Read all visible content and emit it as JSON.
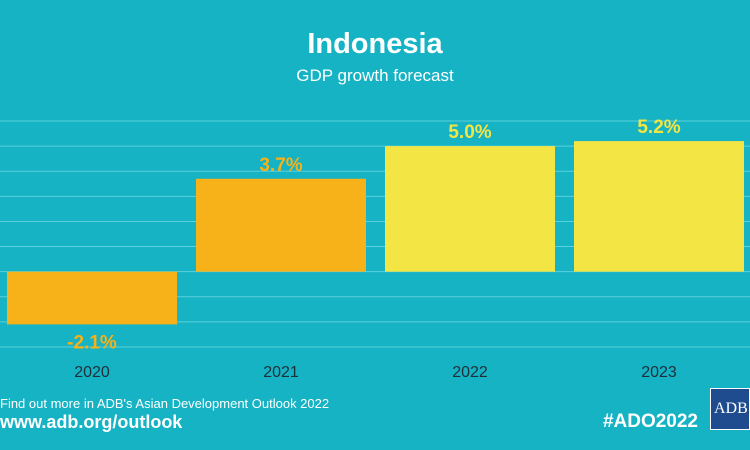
{
  "header": {
    "title": "Indonesia",
    "subtitle": "GDP growth forecast"
  },
  "chart_data": {
    "type": "bar",
    "title": "Indonesia",
    "subtitle": "GDP growth forecast",
    "categories": [
      "2020",
      "2021",
      "2022",
      "2023"
    ],
    "values": [
      -2.1,
      3.7,
      5.0,
      5.2
    ],
    "data_labels": [
      "-2.1%",
      "3.7%",
      "5.0%",
      "5.2%"
    ],
    "ylim": [
      -3,
      6
    ],
    "grid": true,
    "legend": "none",
    "colors": {
      "background": "#15b3c4",
      "bar_actual": "#f7b219",
      "bar_forecast": "#f3e544",
      "label_actual": "#f7b219",
      "label_forecast": "#f3e544",
      "grid": "#5cd0dc",
      "tick_text": "#1f2f3a"
    },
    "bar_colors": [
      "#f7b219",
      "#f7b219",
      "#f3e544",
      "#f3e544"
    ]
  },
  "footer": {
    "text": "Find out more in ADB's Asian Development Outlook 2022",
    "link": "www.adb.org/outlook",
    "hashtag": "#ADO2022",
    "logo_text": "ADB"
  }
}
